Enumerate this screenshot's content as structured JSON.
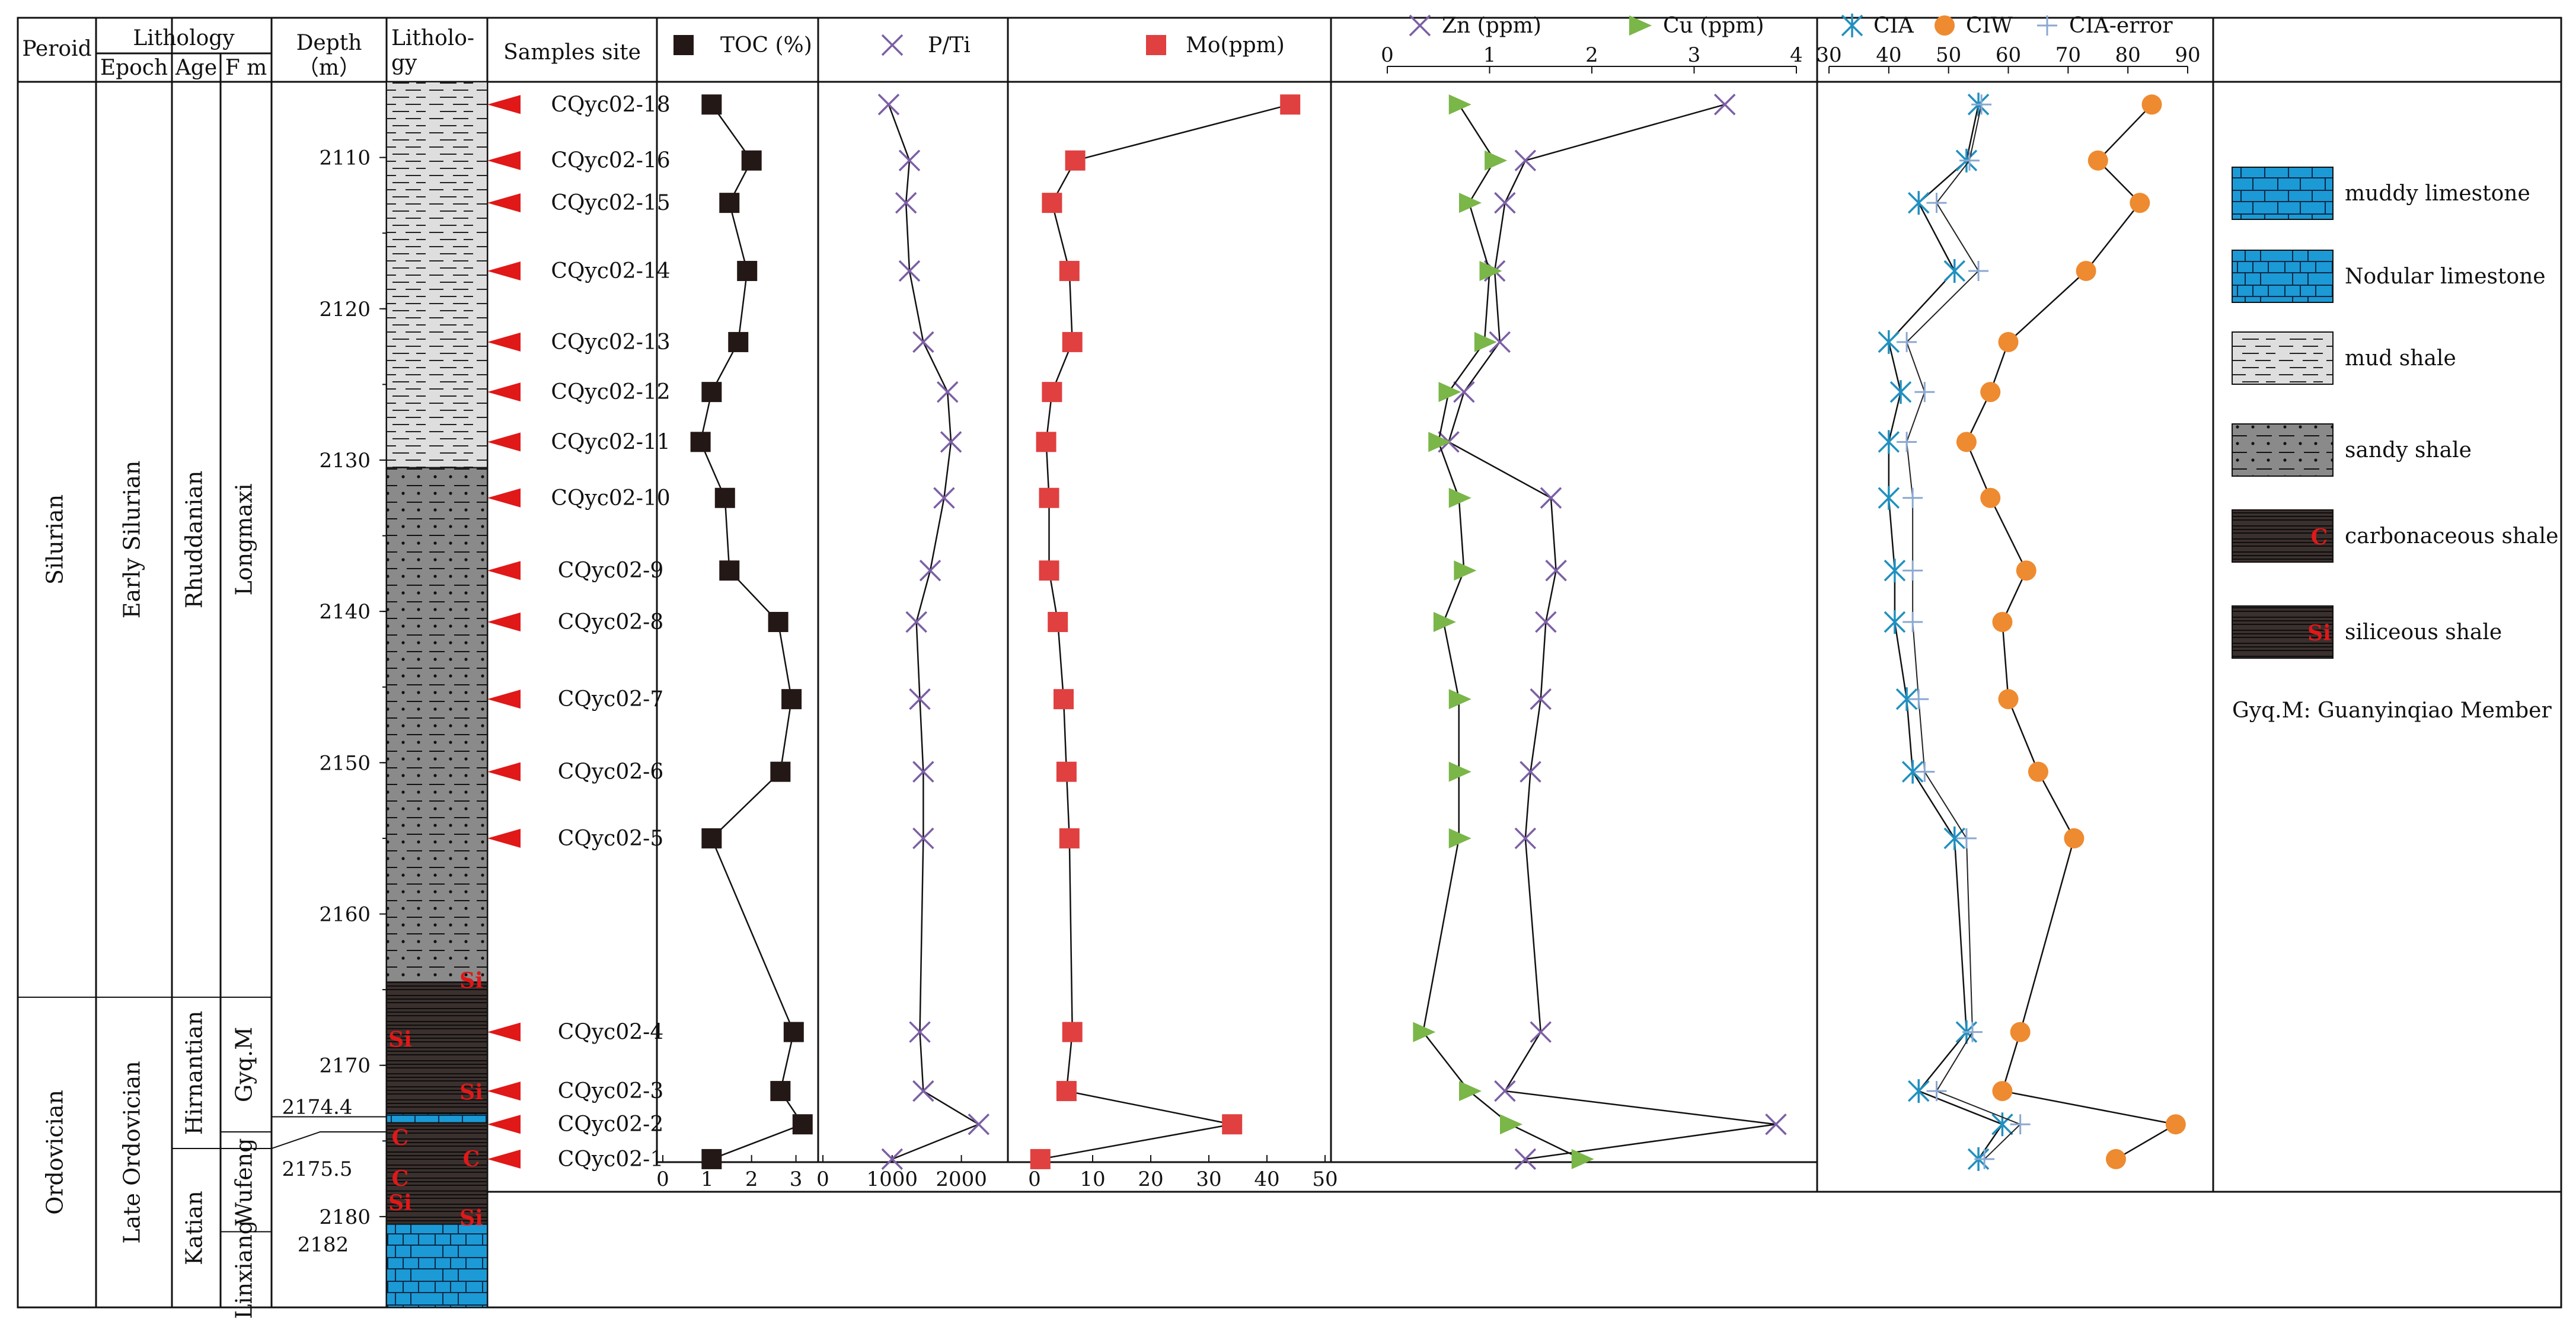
{
  "header": {
    "period": "Peroid",
    "lithology_group": "Lithology",
    "epoch": "Epoch",
    "age": "Age",
    "fm": "F m",
    "depth_line1": "Depth",
    "depth_line2": "（m）",
    "litho_line1": "Litholo-",
    "litho_line2": "gy",
    "samples_site": "Samples site"
  },
  "strat": {
    "periods": [
      {
        "name": "Silurian",
        "top": 2105,
        "bottom": 2165.5
      },
      {
        "name": "Ordovician",
        "top": 2165.5,
        "bottom": 2186
      }
    ],
    "epochs": [
      {
        "name": "Early Silurian",
        "top": 2105,
        "bottom": 2165.5
      },
      {
        "name": "Late Ordovician",
        "top": 2165.5,
        "bottom": 2186
      }
    ],
    "ages": [
      {
        "name": "Rhuddanian",
        "top": 2105,
        "bottom": 2165.5
      },
      {
        "name": "Hirnantian",
        "top": 2165.5,
        "bottom": 2175.5
      },
      {
        "name": "Katian",
        "top": 2175.5,
        "bottom": 2186
      }
    ],
    "formations": [
      {
        "name": "Longmaxi",
        "top": 2105,
        "bottom": 2165.5
      },
      {
        "name": "Gyq.M",
        "top": 2165.5,
        "bottom": 2174.4
      },
      {
        "name": "Wufeng",
        "top": 2174.4,
        "bottom": 2181
      },
      {
        "name": "Linxiang",
        "top": 2181,
        "bottom": 2186
      }
    ]
  },
  "depth_axis": {
    "ticks": [
      2110,
      2120,
      2130,
      2140,
      2150,
      2160,
      2170,
      2180
    ],
    "special_labels": [
      "2174.4",
      "2175.5",
      "2182"
    ]
  },
  "lithology": [
    {
      "type": "mud",
      "top": 2105,
      "bottom": 2130.5
    },
    {
      "type": "sandy",
      "top": 2130.5,
      "bottom": 2164.5
    },
    {
      "type": "siliceous",
      "top": 2164.5,
      "bottom": 2173.2
    },
    {
      "type": "muddylime",
      "top": 2173.2,
      "bottom": 2173.8
    },
    {
      "type": "carbonaceous",
      "top": 2173.8,
      "bottom": 2178.3
    },
    {
      "type": "siliceous",
      "top": 2178.3,
      "bottom": 2180.5
    },
    {
      "type": "nodular",
      "top": 2180.5,
      "bottom": 2186
    }
  ],
  "lith_marks": [
    {
      "text": "Si",
      "depth": 2164.4,
      "side": "right"
    },
    {
      "text": "Si",
      "depth": 2168.3,
      "side": "left"
    },
    {
      "text": "Si",
      "depth": 2171.8,
      "side": "right"
    },
    {
      "text": "C",
      "depth": 2174.8,
      "side": "left"
    },
    {
      "text": "C",
      "depth": 2176.2,
      "side": "right"
    },
    {
      "text": "C",
      "depth": 2177.5,
      "side": "left"
    },
    {
      "text": "Si",
      "depth": 2179.1,
      "side": "left"
    },
    {
      "text": "Si",
      "depth": 2180.1,
      "side": "right"
    }
  ],
  "chart_data": {
    "type": "line",
    "y_axis": {
      "label": "Depth（m）",
      "range": [
        2105,
        2186
      ],
      "reversed": true
    },
    "samples": [
      {
        "name": "CQyc02-18",
        "depth": 2106.5
      },
      {
        "name": "CQyc02-16",
        "depth": 2110.2
      },
      {
        "name": "CQyc02-15",
        "depth": 2113.0
      },
      {
        "name": "CQyc02-14",
        "depth": 2117.5
      },
      {
        "name": "CQyc02-13",
        "depth": 2122.2
      },
      {
        "name": "CQyc02-12",
        "depth": 2125.5
      },
      {
        "name": "CQyc02-11",
        "depth": 2128.8
      },
      {
        "name": "CQyc02-10",
        "depth": 2132.5
      },
      {
        "name": "CQyc02-9",
        "depth": 2137.3
      },
      {
        "name": "CQyc02-8",
        "depth": 2140.7
      },
      {
        "name": "CQyc02-7",
        "depth": 2145.8
      },
      {
        "name": "CQyc02-6",
        "depth": 2150.6
      },
      {
        "name": "CQyc02-5",
        "depth": 2155.0
      },
      {
        "name": "CQyc02-4",
        "depth": 2167.8
      },
      {
        "name": "CQyc02-3",
        "depth": 2171.7
      },
      {
        "name": "CQyc02-2",
        "depth": 2173.9
      },
      {
        "name": "CQyc02-1",
        "depth": 2176.2
      }
    ],
    "panels": [
      {
        "id": "toc",
        "xlim": [
          0,
          3.3
        ],
        "ticks": [
          0,
          1,
          2,
          3
        ],
        "axis_position": "bottom",
        "series": [
          {
            "name": "TOC (%)",
            "marker": "square",
            "color": "#231816",
            "values": [
              1.1,
              2.0,
              1.5,
              1.9,
              1.7,
              1.1,
              0.85,
              1.4,
              1.5,
              2.6,
              2.9,
              2.65,
              1.1,
              2.95,
              2.65,
              3.15,
              1.1
            ]
          }
        ]
      },
      {
        "id": "pti",
        "xlim": [
          0,
          2500
        ],
        "ticks": [
          0,
          1000,
          2000
        ],
        "axis_position": "bottom",
        "series": [
          {
            "name": "P/Ti",
            "marker": "x",
            "color": "#7b5fa5",
            "values": [
              950,
              1250,
              1200,
              1250,
              1450,
              1800,
              1850,
              1750,
              1550,
              1350,
              1400,
              1450,
              1450,
              1400,
              1450,
              2250,
              1000
            ]
          }
        ]
      },
      {
        "id": "mo",
        "xlim": [
          0,
          50
        ],
        "ticks": [
          0,
          10,
          20,
          30,
          40,
          50
        ],
        "axis_position": "bottom",
        "series": [
          {
            "name": "Mo(ppm)",
            "marker": "square",
            "color": "#e04040",
            "values": [
              44,
              7,
              3,
              6,
              6.5,
              3,
              2,
              2.5,
              2.5,
              4,
              5,
              5.5,
              6,
              6.5,
              5.5,
              34,
              1
            ]
          }
        ]
      },
      {
        "id": "zncu",
        "xlim": [
          0,
          4
        ],
        "ticks": [
          0,
          1,
          2,
          3,
          4
        ],
        "axis_position": "top",
        "series": [
          {
            "name": "Zn (ppm)",
            "marker": "x",
            "color": "#7b5fa5",
            "values": [
              3.3,
              1.35,
              1.15,
              1.05,
              1.1,
              0.75,
              0.6,
              1.6,
              1.65,
              1.55,
              1.5,
              1.4,
              1.35,
              1.5,
              1.15,
              3.8,
              1.35
            ]
          },
          {
            "name": "Cu (ppm)",
            "marker": "triangle",
            "color": "#7ab648",
            "values": [
              0.7,
              1.05,
              0.8,
              1.0,
              0.95,
              0.6,
              0.5,
              0.7,
              0.75,
              0.55,
              0.7,
              0.7,
              0.7,
              0.35,
              0.8,
              1.2,
              1.9
            ]
          }
        ]
      },
      {
        "id": "cia",
        "xlim": [
          30,
          90
        ],
        "ticks": [
          30,
          40,
          50,
          60,
          70,
          80,
          90
        ],
        "axis_position": "top",
        "series": [
          {
            "name": "CIA",
            "marker": "asterisk",
            "color": "#2090c0",
            "values": [
              55,
              53,
              45,
              51,
              40,
              42,
              40,
              40,
              41,
              41,
              43,
              44,
              51,
              53,
              45,
              59,
              55
            ]
          },
          {
            "name": "CIW",
            "marker": "circle",
            "color": "#ee8a30",
            "values": [
              84,
              75,
              82,
              73,
              60,
              57,
              53,
              57,
              63,
              59,
              60,
              65,
              71,
              62,
              59,
              88,
              78
            ]
          },
          {
            "name": "CIA-error",
            "marker": "plus",
            "color": "#8aa8d0",
            "values": [
              55.5,
              53.5,
              48,
              55,
              43,
              46,
              43,
              44,
              44,
              44,
              45,
              46,
              53,
              54,
              48,
              62,
              56
            ]
          }
        ]
      }
    ]
  },
  "legend": {
    "items": [
      {
        "key": "muddylime",
        "label": "muddy limestone"
      },
      {
        "key": "nodular",
        "label": "Nodular limestone"
      },
      {
        "key": "mud",
        "label": "mud shale"
      },
      {
        "key": "sandy",
        "label": "sandy shale"
      },
      {
        "key": "carbonaceous",
        "label": "carbonaceous shale"
      },
      {
        "key": "siliceous",
        "label": "siliceous shale"
      }
    ],
    "note": "Gyq.M: Guanyinqiao Member"
  },
  "colors": {
    "mud_bg": "#dedede",
    "sandy_bg": "#8a8a8a",
    "dark_bg": "#3a302e",
    "lime_bg": "#1b9ad6",
    "marker_red": "#e01818",
    "text": "#111111"
  }
}
